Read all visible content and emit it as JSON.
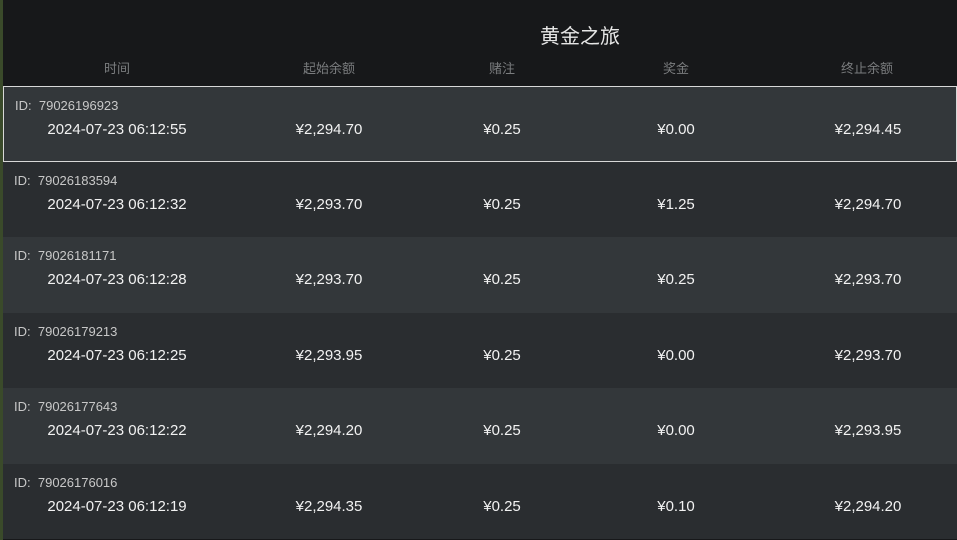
{
  "title": "黄金之旅",
  "columns": [
    "时间",
    "起始余额",
    "赌注",
    "奖金",
    "终止余额"
  ],
  "id_label": "ID:",
  "rows": [
    {
      "id": "79026196923",
      "time": "2024-07-23  06:12:55",
      "start": "¥2,294.70",
      "bet": "¥0.25",
      "win": "¥0.00",
      "end": "¥2,294.45",
      "selected": true
    },
    {
      "id": "79026183594",
      "time": "2024-07-23  06:12:32",
      "start": "¥2,293.70",
      "bet": "¥0.25",
      "win": "¥1.25",
      "end": "¥2,294.70"
    },
    {
      "id": "79026181171",
      "time": "2024-07-23  06:12:28",
      "start": "¥2,293.70",
      "bet": "¥0.25",
      "win": "¥0.25",
      "end": "¥2,293.70"
    },
    {
      "id": "79026179213",
      "time": "2024-07-23  06:12:25",
      "start": "¥2,293.95",
      "bet": "¥0.25",
      "win": "¥0.00",
      "end": "¥2,293.70"
    },
    {
      "id": "79026177643",
      "time": "2024-07-23  06:12:22",
      "start": "¥2,294.20",
      "bet": "¥0.25",
      "win": "¥0.00",
      "end": "¥2,293.95"
    },
    {
      "id": "79026176016",
      "time": "2024-07-23  06:12:19",
      "start": "¥2,294.35",
      "bet": "¥0.25",
      "win": "¥0.10",
      "end": "¥2,294.20"
    }
  ]
}
